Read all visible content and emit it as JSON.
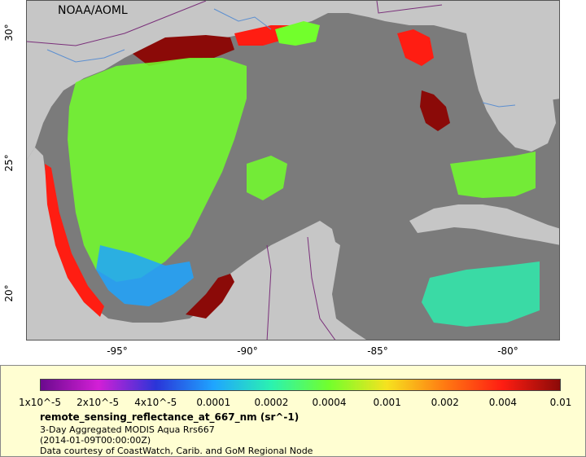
{
  "watermark": "NOAA/AOML",
  "y_ticks": [
    {
      "label": "30°",
      "lat": 30
    },
    {
      "label": "25°",
      "lat": 25
    },
    {
      "label": "20°",
      "lat": 20
    }
  ],
  "x_ticks": [
    {
      "label": "-95°",
      "lon": -95
    },
    {
      "label": "-90°",
      "lon": -90
    },
    {
      "label": "-85°",
      "lon": -85
    },
    {
      "label": "-80°",
      "lon": -80
    }
  ],
  "colorbar": {
    "labels": [
      "1x10^-5",
      "2x10^-5",
      "4x10^-5",
      "0.0001",
      "0.0002",
      "0.0004",
      "0.001",
      "0.002",
      "0.004",
      "0.01"
    ],
    "colors": [
      "#6b0a8e",
      "#d31fd6",
      "#2a35d8",
      "#1fa5ff",
      "#2bf2b0",
      "#72ff2c",
      "#f6e21f",
      "#ff7a12",
      "#ff1d12",
      "#8b0a08"
    ]
  },
  "legend": {
    "title": "remote_sensing_reflectance_at_667_nm (sr^-1)",
    "line1": "3-Day Aggregated MODIS Aqua Rrs667",
    "line2": "(2014-01-09T00:00:00Z)",
    "line3": "Data courtesy of CoastWatch, Carib. and GoM Regional Node"
  },
  "map_colors": {
    "ocean": "#7b7b7b",
    "land": "#c6c6c6",
    "border": "#7a2f7a",
    "river": "#5c8fd0"
  }
}
